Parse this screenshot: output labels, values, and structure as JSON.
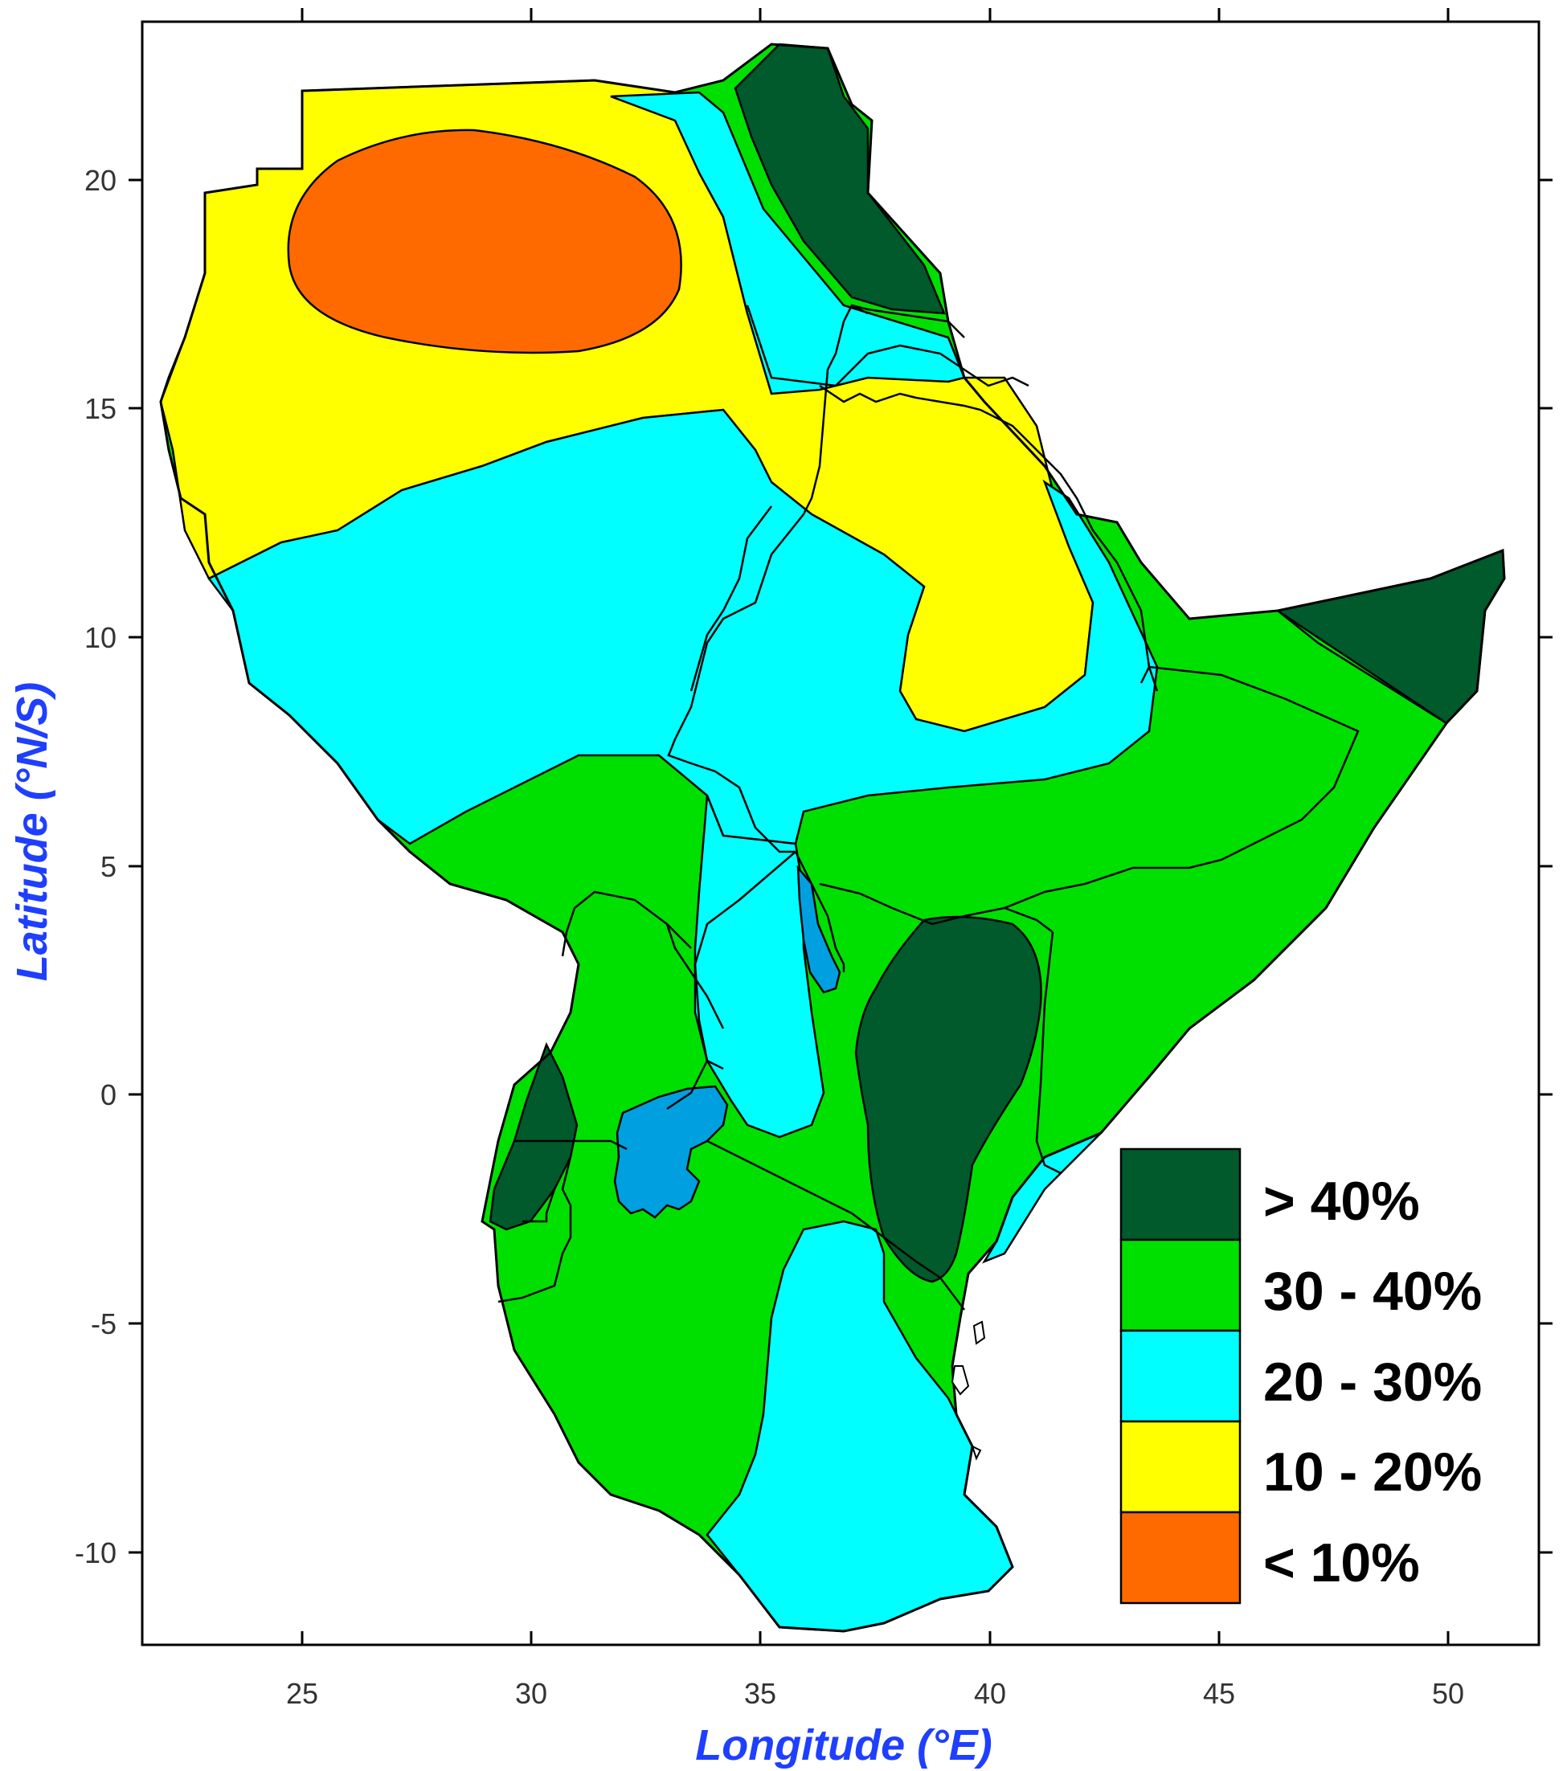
{
  "map": {
    "x_axis_title": "Longitude (°E)",
    "y_axis_title": "Latitude (°N/S)",
    "x_ticks": [
      "25",
      "30",
      "35",
      "40",
      "45",
      "50"
    ],
    "y_ticks": [
      "20",
      "15",
      "10",
      "5",
      "0",
      "-5",
      "-10"
    ],
    "x_extent": [
      21.5,
      52
    ],
    "y_extent": [
      -12,
      23.6
    ]
  },
  "legend": {
    "items": [
      {
        "label": "> 40%",
        "color": "#005a2b"
      },
      {
        "label": "30 - 40%",
        "color": "#00e000"
      },
      {
        "label": "20 - 30%",
        "color": "#00ffff"
      },
      {
        "label": "10 - 20%",
        "color": "#ffff00"
      },
      {
        "label": "< 10%",
        "color": "#ff6a00"
      }
    ]
  },
  "colors": {
    "lake": "#00a0e0",
    "land_background": "#00e000",
    "axis_title": "#1f3fff"
  }
}
